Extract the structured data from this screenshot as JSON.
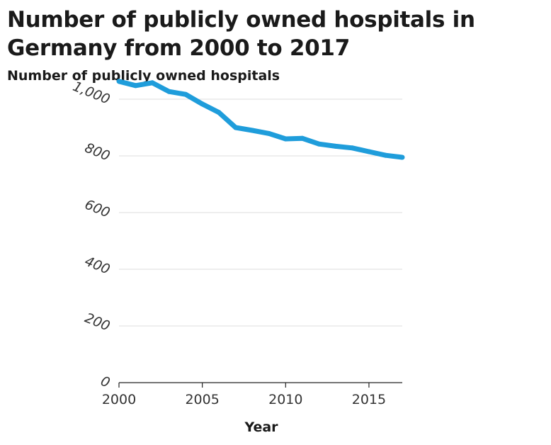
{
  "title": "Number of publicly owned hospitals in Germany from 2000 to 2017",
  "chart_data": {
    "type": "line",
    "title": "Number of publicly owned hospitals in Germany from 2000 to 2017",
    "ylabel": "Number of publicly owned hospitals",
    "xlabel": "Year",
    "xlim": [
      2000,
      2017
    ],
    "ylim": [
      0,
      1000
    ],
    "yticks": [
      0,
      200,
      400,
      600,
      800,
      1000
    ],
    "ytick_labels": [
      "0",
      "200",
      "400",
      "600",
      "800",
      "1,000"
    ],
    "xticks": [
      2000,
      2005,
      2010,
      2015
    ],
    "xtick_labels": [
      "2000",
      "2005",
      "2010",
      "2015"
    ],
    "grid": "horizontal",
    "line_color": "#1f9ddb",
    "series": [
      {
        "x": [
          2000,
          2001,
          2002,
          2003,
          2004,
          2005,
          2006,
          2007,
          2008,
          2009,
          2010,
          2011,
          2012,
          2013,
          2014,
          2015,
          2016,
          2017
        ],
        "values": [
          1063,
          1048,
          1058,
          1027,
          1017,
          983,
          953,
          900,
          890,
          879,
          860,
          862,
          842,
          834,
          828,
          815,
          802,
          795
        ]
      }
    ]
  }
}
